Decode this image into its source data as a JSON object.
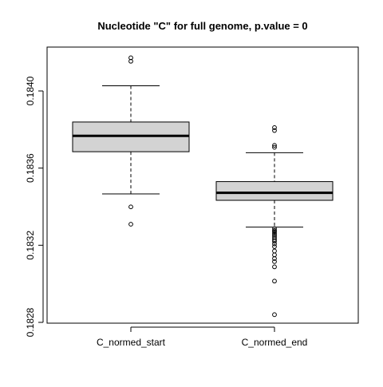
{
  "chart_data": {
    "type": "boxplot",
    "title": "Nucleotide \"C\" for full genome, p.value = 0",
    "xlabel": "",
    "ylabel": "",
    "ylim": [
      0.18276,
      0.18422
    ],
    "yticks": [
      0.1828,
      0.1832,
      0.1836,
      0.184
    ],
    "ytick_labels": [
      "0.1828",
      "0.1832",
      "0.1836",
      "0.1840"
    ],
    "grid": false,
    "box_fill": "#d3d3d3",
    "line_color": "#000000",
    "categories": [
      "C_normed_start",
      "C_normed_end"
    ],
    "boxes": [
      {
        "name": "C_normed_start",
        "whisker_low": 0.183466,
        "q1": 0.183685,
        "median": 0.183767,
        "q3": 0.183839,
        "whisker_high": 0.184027,
        "outliers": [
          0.184172,
          0.184154,
          0.183399,
          0.183309
        ]
      },
      {
        "name": "C_normed_end",
        "whisker_low": 0.183294,
        "q1": 0.183433,
        "median": 0.183472,
        "q3": 0.18353,
        "whisker_high": 0.18368,
        "outliers": [
          0.18381,
          0.183795,
          0.183718,
          0.183708,
          0.183286,
          0.183277,
          0.183271,
          0.183263,
          0.183255,
          0.183247,
          0.183238,
          0.183229,
          0.18322,
          0.183207,
          0.183193,
          0.18317,
          0.18315,
          0.183131,
          0.183115,
          0.183088,
          0.183014,
          0.18284
        ]
      }
    ]
  }
}
